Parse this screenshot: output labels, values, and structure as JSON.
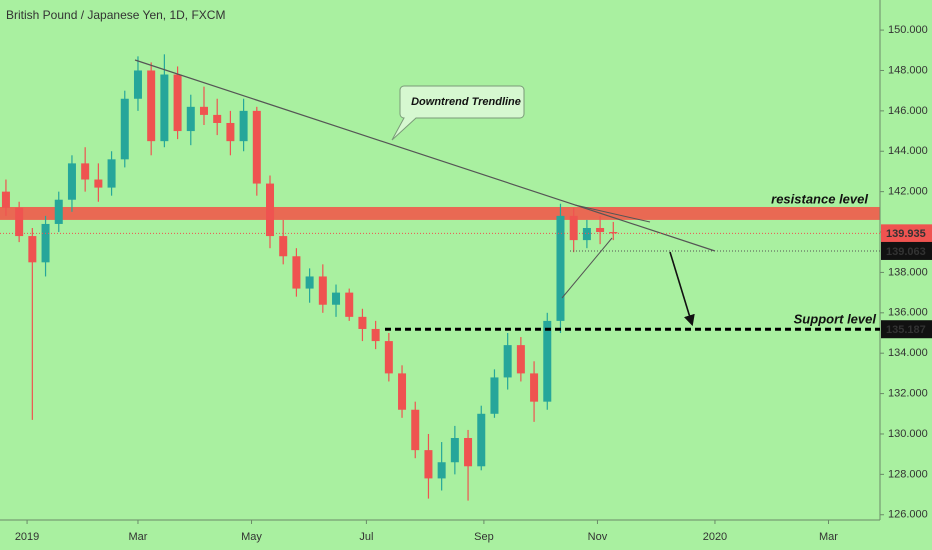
{
  "chart_data": {
    "type": "candlestick",
    "title": "British Pound / Japanese Yen, 1D, FXCM",
    "up_color": "#26a69a",
    "down_color": "#ef5350",
    "open": [
      142.0,
      141.2,
      139.8,
      138.5,
      140.4,
      141.6,
      143.4,
      142.6,
      142.2,
      143.6,
      146.6,
      148.0,
      144.5,
      147.8,
      145.0,
      146.2,
      145.8,
      145.4,
      144.5,
      146.0,
      142.4,
      139.8,
      138.8,
      137.2,
      137.8,
      136.4,
      137.0,
      135.8,
      135.2,
      134.6,
      133.0,
      131.2,
      129.2,
      127.8,
      128.6,
      129.8,
      128.4,
      131.0,
      132.8,
      134.4,
      133.0,
      131.6,
      135.6,
      140.8,
      139.6,
      140.2,
      140.0
    ],
    "high": [
      142.6,
      141.5,
      140.2,
      140.8,
      142.0,
      143.8,
      144.2,
      143.4,
      144.0,
      147.0,
      148.7,
      148.4,
      148.8,
      148.2,
      146.8,
      147.2,
      146.6,
      146.0,
      146.6,
      146.2,
      142.8,
      140.6,
      139.2,
      138.2,
      138.4,
      137.4,
      137.2,
      136.2,
      135.6,
      135.0,
      133.4,
      131.6,
      130.0,
      129.6,
      130.4,
      130.2,
      131.4,
      133.2,
      135.0,
      134.8,
      133.6,
      136.0,
      141.4,
      141.2,
      140.6,
      140.8,
      140.5
    ],
    "low": [
      140.8,
      139.5,
      130.7,
      137.8,
      140.0,
      141.0,
      142.0,
      141.5,
      141.8,
      143.2,
      146.0,
      143.8,
      144.2,
      144.6,
      144.3,
      145.3,
      144.8,
      143.8,
      144.0,
      141.8,
      139.2,
      138.4,
      136.8,
      136.5,
      136.0,
      135.8,
      135.6,
      134.6,
      134.2,
      132.6,
      130.8,
      128.8,
      126.8,
      127.2,
      128.0,
      126.7,
      128.2,
      130.8,
      132.2,
      132.6,
      130.6,
      131.2,
      135.0,
      139.0,
      139.2,
      139.4,
      139.6
    ],
    "close": [
      141.2,
      139.8,
      138.5,
      140.4,
      141.6,
      143.4,
      142.6,
      142.2,
      143.6,
      146.6,
      148.0,
      144.5,
      147.8,
      145.0,
      146.2,
      145.8,
      145.4,
      144.5,
      146.0,
      142.4,
      139.8,
      138.8,
      137.2,
      137.8,
      136.4,
      137.0,
      135.8,
      135.2,
      134.6,
      133.0,
      131.2,
      129.2,
      127.8,
      128.6,
      129.8,
      128.4,
      131.0,
      132.8,
      134.4,
      133.0,
      131.6,
      135.6,
      140.8,
      139.6,
      140.2,
      140.0,
      139.935
    ],
    "xlim": [
      -0.45,
      66.2
    ],
    "xticks": [
      {
        "value": 1.6,
        "label": "2019"
      },
      {
        "value": 10,
        "label": "Mar"
      },
      {
        "value": 18.6,
        "label": "May"
      },
      {
        "value": 27.3,
        "label": "Jul"
      },
      {
        "value": 36.2,
        "label": "Sep"
      },
      {
        "value": 44.8,
        "label": "Nov"
      },
      {
        "value": 53.7,
        "label": "2020"
      },
      {
        "value": 62.3,
        "label": "Mar"
      }
    ],
    "ylim": [
      125.74,
      151.49
    ],
    "yticks": [
      {
        "value": 126,
        "label": "126.000"
      },
      {
        "value": 128,
        "label": "128.000"
      },
      {
        "value": 130,
        "label": "130.000"
      },
      {
        "value": 132,
        "label": "132.000"
      },
      {
        "value": 134,
        "label": "134.000"
      },
      {
        "value": 136,
        "label": "136.000"
      },
      {
        "value": 138,
        "label": "138.000"
      },
      {
        "value": 140,
        "label": "140.000"
      },
      {
        "value": 142,
        "label": "142.000"
      },
      {
        "value": 144,
        "label": "144.000"
      },
      {
        "value": 146,
        "label": "146.000"
      },
      {
        "value": 148,
        "label": "148.000"
      },
      {
        "value": 150,
        "label": "150.000"
      }
    ],
    "last_price": 139.935,
    "trendline_level": 139.063,
    "support": 135.187,
    "resistance_zone": [
      140.6,
      141.24
    ],
    "annotations": {
      "trendline": "Downtrend Trendline",
      "resistance": "resistance level",
      "support": "Support level"
    }
  }
}
